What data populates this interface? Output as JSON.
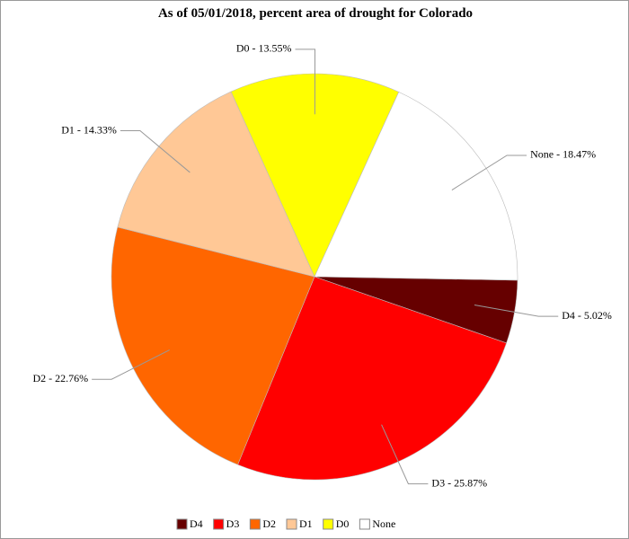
{
  "chart_data": {
    "type": "pie",
    "title": "As of 05/01/2018, percent area of drought for Colorado",
    "categories": [
      "D4",
      "D3",
      "D2",
      "D1",
      "D0",
      "None"
    ],
    "values": [
      5.02,
      25.87,
      22.76,
      14.33,
      13.55,
      18.47
    ],
    "value_labels": [
      "D4 - 5.02%",
      "D3 - 25.87%",
      "D2 - 22.76%",
      "D1 - 14.33%",
      "D0 - 13.55%",
      "None - 18.47%"
    ],
    "colors": [
      "#660000",
      "#ff0000",
      "#ff6600",
      "#ffc896",
      "#ffff00",
      "#ffffff"
    ]
  }
}
